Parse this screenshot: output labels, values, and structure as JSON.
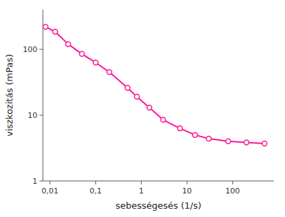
{
  "chart_data": {
    "type": "line",
    "x": [
      0.008,
      0.013,
      0.025,
      0.05,
      0.1,
      0.2,
      0.5,
      0.8,
      1.5,
      3.0,
      7.0,
      15.0,
      30.0,
      80.0,
      200.0,
      500.0
    ],
    "values": [
      220,
      185,
      120,
      85,
      63,
      45,
      26,
      19,
      13,
      8.5,
      6.3,
      5.0,
      4.4,
      4.0,
      3.85,
      3.7
    ],
    "color": "#FF1493",
    "marker": "circle",
    "xlabel": "sebességesés (1/s)",
    "ylabel": "viszkozitás (mPas)",
    "log": true,
    "xlim": [
      0.007,
      800
    ],
    "ylim": [
      1,
      400
    ],
    "xticks": [
      {
        "value": 0.01,
        "label": "0,01"
      },
      {
        "value": 0.1,
        "label": "0,1"
      },
      1,
      10,
      100
    ],
    "yticks": [
      1,
      10,
      100
    ]
  }
}
